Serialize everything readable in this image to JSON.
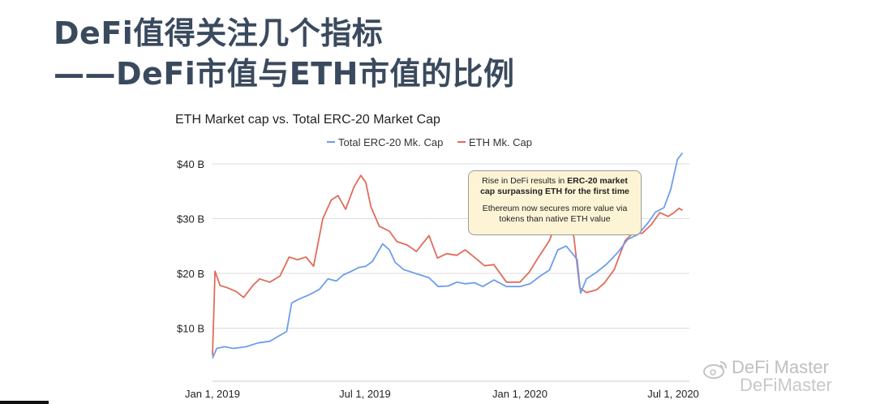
{
  "slide": {
    "title_line1": "DeFi值得关注几个指标",
    "title_line2": "——DeFi市值与ETH市值的比例"
  },
  "chart_data": {
    "type": "line",
    "title": "ETH Market cap vs. Total ERC-20 Market Cap",
    "xlabel": "",
    "ylabel": "",
    "ylim": [
      3,
      40
    ],
    "yticks": [
      10,
      20,
      30,
      40
    ],
    "ytick_labels": [
      "$10 B",
      "$20 B",
      "$30 B",
      "$40 B"
    ],
    "xticks": [
      "2019-01-01",
      "2019-07-01",
      "2020-01-01",
      "2020-07-01"
    ],
    "xtick_labels": [
      "Jan 1, 2019",
      "Jul 1, 2019",
      "Jan 1, 2020",
      "Jul 1, 2020"
    ],
    "grid": true,
    "legend_position": "top",
    "series": [
      {
        "name": "Total ERC-20 Mk. Cap",
        "color": "#6d9eeb",
        "points": [
          [
            "2019-01-01",
            4.5
          ],
          [
            "2019-01-06",
            6.3
          ],
          [
            "2019-01-15",
            6.6
          ],
          [
            "2019-01-26",
            6.3
          ],
          [
            "2019-02-10",
            6.6
          ],
          [
            "2019-02-24",
            7.3
          ],
          [
            "2019-03-10",
            7.6
          ],
          [
            "2019-03-20",
            8.5
          ],
          [
            "2019-03-30",
            9.4
          ],
          [
            "2019-04-05",
            14.6
          ],
          [
            "2019-04-15",
            15.4
          ],
          [
            "2019-04-26",
            16.1
          ],
          [
            "2019-05-08",
            17.1
          ],
          [
            "2019-05-18",
            19.0
          ],
          [
            "2019-05-28",
            18.6
          ],
          [
            "2019-06-05",
            19.7
          ],
          [
            "2019-06-15",
            20.4
          ],
          [
            "2019-06-24",
            21.1
          ],
          [
            "2019-07-02",
            21.3
          ],
          [
            "2019-07-10",
            22.2
          ],
          [
            "2019-07-22",
            25.4
          ],
          [
            "2019-07-30",
            24.3
          ],
          [
            "2019-08-06",
            22.0
          ],
          [
            "2019-08-16",
            20.7
          ],
          [
            "2019-08-30",
            20.0
          ],
          [
            "2019-09-15",
            19.2
          ],
          [
            "2019-09-26",
            17.6
          ],
          [
            "2019-10-08",
            17.7
          ],
          [
            "2019-10-18",
            18.4
          ],
          [
            "2019-10-28",
            18.1
          ],
          [
            "2019-11-08",
            18.3
          ],
          [
            "2019-11-18",
            17.6
          ],
          [
            "2019-12-01",
            18.8
          ],
          [
            "2019-12-16",
            17.6
          ],
          [
            "2020-01-01",
            17.6
          ],
          [
            "2020-01-13",
            18.1
          ],
          [
            "2020-01-25",
            19.5
          ],
          [
            "2020-02-05",
            20.6
          ],
          [
            "2020-02-15",
            24.3
          ],
          [
            "2020-02-25",
            25.0
          ],
          [
            "2020-03-05",
            23.3
          ],
          [
            "2020-03-09",
            22.5
          ],
          [
            "2020-03-13",
            16.4
          ],
          [
            "2020-03-20",
            19.0
          ],
          [
            "2020-04-01",
            20.2
          ],
          [
            "2020-04-13",
            21.7
          ],
          [
            "2020-04-26",
            23.8
          ],
          [
            "2020-05-08",
            26.2
          ],
          [
            "2020-05-20",
            27.1
          ],
          [
            "2020-06-01",
            29.2
          ],
          [
            "2020-06-10",
            31.2
          ],
          [
            "2020-06-20",
            32.0
          ],
          [
            "2020-06-28",
            35.3
          ],
          [
            "2020-07-06",
            40.8
          ],
          [
            "2020-07-12",
            42.0
          ]
        ]
      },
      {
        "name": "ETH Mk. Cap",
        "color": "#e06c5a",
        "points": [
          [
            "2019-01-01",
            5.0
          ],
          [
            "2019-01-04",
            20.4
          ],
          [
            "2019-01-10",
            17.8
          ],
          [
            "2019-01-20",
            17.3
          ],
          [
            "2019-01-30",
            16.6
          ],
          [
            "2019-02-07",
            15.6
          ],
          [
            "2019-02-18",
            17.8
          ],
          [
            "2019-02-26",
            19.0
          ],
          [
            "2019-03-10",
            18.4
          ],
          [
            "2019-03-22",
            19.5
          ],
          [
            "2019-04-02",
            23.0
          ],
          [
            "2019-04-12",
            22.5
          ],
          [
            "2019-04-22",
            23.0
          ],
          [
            "2019-05-01",
            21.3
          ],
          [
            "2019-05-12",
            30.0
          ],
          [
            "2019-05-22",
            33.4
          ],
          [
            "2019-05-30",
            34.2
          ],
          [
            "2019-06-08",
            31.7
          ],
          [
            "2019-06-18",
            35.8
          ],
          [
            "2019-06-26",
            37.9
          ],
          [
            "2019-07-02",
            36.6
          ],
          [
            "2019-07-08",
            32.2
          ],
          [
            "2019-07-18",
            28.6
          ],
          [
            "2019-07-30",
            27.7
          ],
          [
            "2019-08-08",
            25.8
          ],
          [
            "2019-08-20",
            25.2
          ],
          [
            "2019-08-31",
            24.0
          ],
          [
            "2019-09-15",
            26.9
          ],
          [
            "2019-09-25",
            22.8
          ],
          [
            "2019-10-06",
            23.6
          ],
          [
            "2019-10-18",
            23.3
          ],
          [
            "2019-10-28",
            24.3
          ],
          [
            "2019-11-10",
            22.7
          ],
          [
            "2019-11-20",
            21.4
          ],
          [
            "2019-12-01",
            21.6
          ],
          [
            "2019-12-16",
            18.4
          ],
          [
            "2020-01-01",
            18.4
          ],
          [
            "2020-01-12",
            20.2
          ],
          [
            "2020-01-22",
            22.7
          ],
          [
            "2020-02-05",
            26.0
          ],
          [
            "2020-02-14",
            29.7
          ],
          [
            "2020-02-24",
            30.8
          ],
          [
            "2020-03-05",
            26.7
          ],
          [
            "2020-03-12",
            17.4
          ],
          [
            "2020-03-20",
            16.5
          ],
          [
            "2020-04-01",
            17.0
          ],
          [
            "2020-04-10",
            18.2
          ],
          [
            "2020-04-22",
            20.7
          ],
          [
            "2020-05-05",
            26.0
          ],
          [
            "2020-05-15",
            27.5
          ],
          [
            "2020-05-25",
            27.3
          ],
          [
            "2020-06-05",
            28.9
          ],
          [
            "2020-06-15",
            31.1
          ],
          [
            "2020-06-25",
            30.4
          ],
          [
            "2020-07-02",
            31.1
          ],
          [
            "2020-07-08",
            31.9
          ],
          [
            "2020-07-12",
            31.5
          ]
        ]
      }
    ],
    "annotations": [
      {
        "text_plain_1": "Rise in DeFi results in ",
        "text_bold": "ERC-20 market cap surpassing ETH for the first time",
        "text_plain_2": "Ethereum now secures more value via tokens than native ETH value",
        "background_color": "#fdf4d6"
      }
    ]
  },
  "watermark": {
    "line1": "DeFi Master",
    "line2": "DeFiMaster",
    "icon": "weibo-icon"
  }
}
